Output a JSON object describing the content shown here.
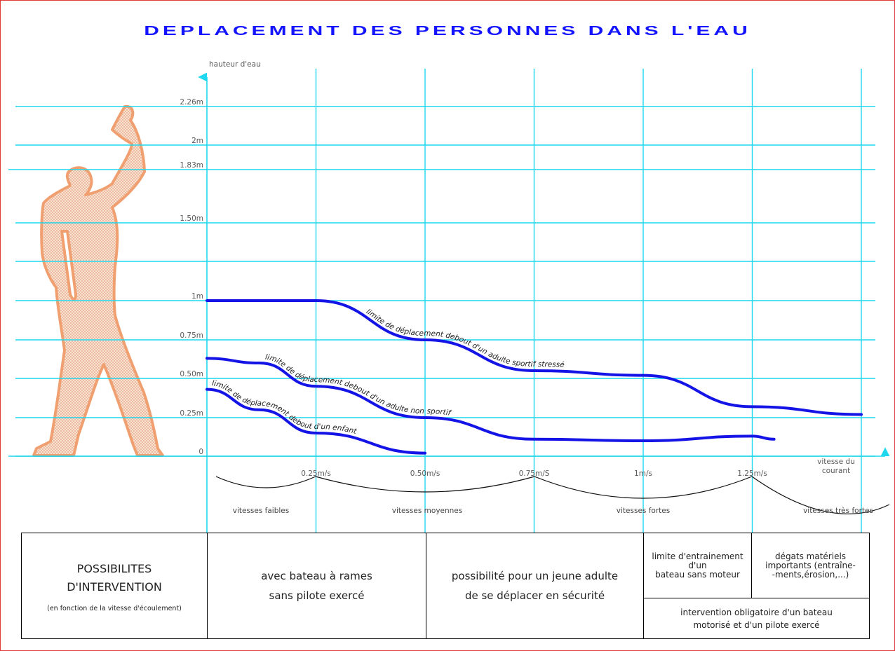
{
  "title": "DEPLACEMENT DES PERSONNES DANS L'EAU",
  "axes": {
    "y_label": "hauteur d'eau",
    "x_label_line1": "vitesse du",
    "x_label_line2": "courant",
    "y_ticks": [
      "0",
      "0.25m",
      "0.50m",
      "0.75m",
      "1m",
      "1.50m",
      "1.83m",
      "2m",
      "2.26m"
    ],
    "x_ticks": [
      "0.25m/s",
      "0.50m/s",
      "0.75m/S",
      "1m/s",
      "1.25m/s"
    ]
  },
  "speed_ranges": [
    "vitesses faibles",
    "vitesses moyennes",
    "vitesses fortes",
    "vitesses très fortes"
  ],
  "chart_data": {
    "type": "line",
    "title": "DEPLACEMENT DES PERSONNES DANS L'EAU",
    "xlabel": "vitesse du courant",
    "ylabel": "hauteur d'eau",
    "x_unit": "m/s",
    "y_unit": "m",
    "series": [
      {
        "name": "limite de déplacement debout d'un adulte sportif stressé",
        "x": [
          0,
          0.25,
          0.5,
          0.75,
          1.0,
          1.25,
          1.5
        ],
        "y": [
          1.0,
          1.0,
          0.75,
          0.55,
          0.52,
          0.32,
          0.27
        ]
      },
      {
        "name": "limite de déplacement debout d'un adulte non sportif",
        "x": [
          0,
          0.12,
          0.25,
          0.5,
          0.75,
          1.0,
          1.25,
          1.3
        ],
        "y": [
          0.63,
          0.6,
          0.45,
          0.25,
          0.11,
          0.1,
          0.13,
          0.11
        ]
      },
      {
        "name": "limite de déplacement debout d'un enfant",
        "x": [
          0,
          0.12,
          0.25,
          0.5
        ],
        "y": [
          0.43,
          0.3,
          0.15,
          0.02
        ]
      }
    ],
    "legend": "none",
    "grid": true
  },
  "table": {
    "header": {
      "line1": "POSSIBILITES",
      "line2": "D'INTERVENTION",
      "note": "(en fonction de la vitesse d'écoulement)"
    },
    "cell1": {
      "line1": "avec bateau à rames",
      "line2": "sans pilote exercé"
    },
    "cell2": {
      "line1": "possibilité pour un jeune adulte",
      "line2": "de se déplacer en sécurité"
    },
    "cell3": {
      "line1": "limite d'entrainement",
      "line2": "d'un",
      "line3": "bateau sans moteur"
    },
    "cell4": {
      "line1": "dégats matériels",
      "line2": "importants (entraîne-",
      "line3": "-ments,érosion,...)"
    },
    "cell5": {
      "line1": "intervention obligatoire d'un bateau",
      "line2": "motorisé et d'un pilote exercé"
    }
  },
  "colors": {
    "title": "#1414ff",
    "grid": "#1fd7ee",
    "curves": "#1414e6",
    "figure_outline": "#f0a070",
    "figure_fill": "#f4c2a0",
    "frame": "#e03a3a"
  }
}
